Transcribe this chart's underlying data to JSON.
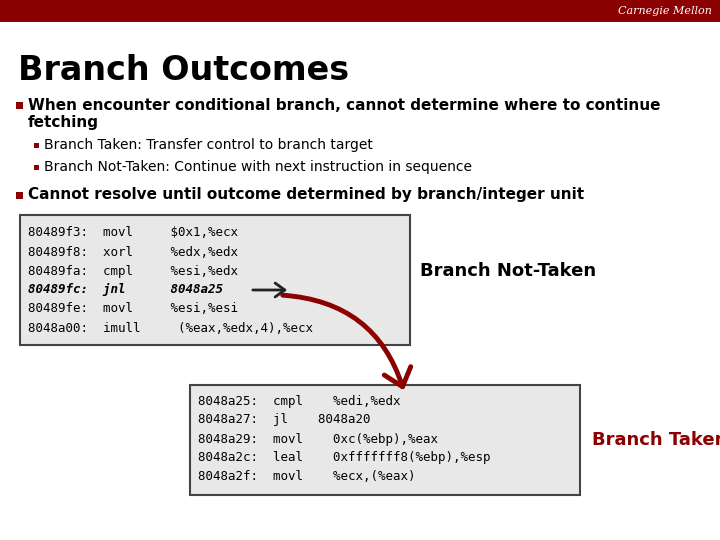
{
  "title": "Branch Outcomes",
  "header_color": "#8b0000",
  "header_text_color": "#ffffff",
  "header_label": "Carnegie Mellon",
  "title_color": "#000000",
  "bullet_color": "#8b0000",
  "sub_bullet1": "Branch Taken: Transfer control to branch target",
  "sub_bullet2": "Branch Not-Taken: Continue with next instruction in sequence",
  "bullet2_text": "Cannot resolve until outcome determined by branch/integer unit",
  "code_box1_lines": [
    [
      "80489f3:",
      "movl",
      "$0x1,%ecx",
      false
    ],
    [
      "80489f8:",
      "xorl",
      "%edx,%edx",
      false
    ],
    [
      "80489fa:",
      "cmpl",
      "%esi,%edx",
      false
    ],
    [
      "80489fc:",
      "jnl",
      "8048a25",
      true
    ],
    [
      "80489fe:",
      "movl",
      "%esi,%esi",
      false
    ],
    [
      "8048a00:",
      "imull",
      "(%eax,%edx,4),%ecx",
      false
    ]
  ],
  "code_box2_lines": [
    [
      "8048a25:",
      "cmpl",
      "%edi,%edx"
    ],
    [
      "8048a27:",
      "jl",
      "8048a20"
    ],
    [
      "8048a29:",
      "movl",
      "0xc(%ebp),%eax"
    ],
    [
      "8048a2c:",
      "leal",
      "0xfffffff8(%ebp),%esp"
    ],
    [
      "8048a2f:",
      "movl",
      "%ecx,(%eax)"
    ]
  ],
  "label_not_taken": "Branch Not-Taken",
  "label_taken": "Branch Taken",
  "box1_bg": "#e8e8e8",
  "box2_bg": "#e8e8e8",
  "box_border": "#444444"
}
